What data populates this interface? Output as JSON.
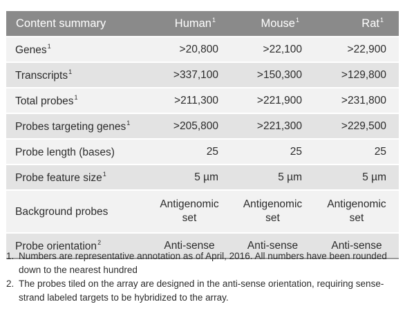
{
  "table": {
    "header": {
      "label": "Content summary",
      "columns": [
        {
          "name": "Human",
          "sup": "1"
        },
        {
          "name": "Mouse",
          "sup": "1"
        },
        {
          "name": "Rat",
          "sup": "1"
        }
      ]
    },
    "rows": [
      {
        "label": "Genes",
        "sup": "1",
        "values": [
          ">20,800",
          ">22,100",
          ">22,900"
        ]
      },
      {
        "label": "Transcripts",
        "sup": "1",
        "values": [
          ">337,100",
          ">150,300",
          ">129,800"
        ]
      },
      {
        "label": "Total probes",
        "sup": "1",
        "values": [
          ">211,300",
          ">221,900",
          ">231,800"
        ]
      },
      {
        "label": "Probes targeting genes",
        "sup": "1",
        "values": [
          ">205,800",
          ">221,300",
          ">229,500"
        ]
      },
      {
        "label": "Probe length (bases)",
        "sup": "",
        "values": [
          "25",
          "25",
          "25"
        ]
      },
      {
        "label": "Probe feature size",
        "sup": "1",
        "values": [
          "5 µm",
          "5 µm",
          "5 µm"
        ]
      },
      {
        "label": "Background probes",
        "sup": "",
        "values": [
          "Antigenomic set",
          "Antigenomic set",
          "Antigenomic set"
        ]
      },
      {
        "label": "Probe orientation",
        "sup": "2",
        "values": [
          "Anti-sense",
          "Anti-sense",
          "Anti-sense"
        ]
      }
    ]
  },
  "footnotes": [
    {
      "num": "1.",
      "text": "Numbers are representative annotation as of April, 2016. All numbers  have been rounded down to the nearest hundred"
    },
    {
      "num": "2.",
      "text": "The probes tiled on the array are designed in the anti-sense orientation, requiring sense-strand labeled targets to be hybridized to the array."
    }
  ],
  "colors": {
    "header_bg": "#8a8a8a",
    "row_light": "#f2f2f2",
    "row_dark": "#e3e3e3"
  }
}
